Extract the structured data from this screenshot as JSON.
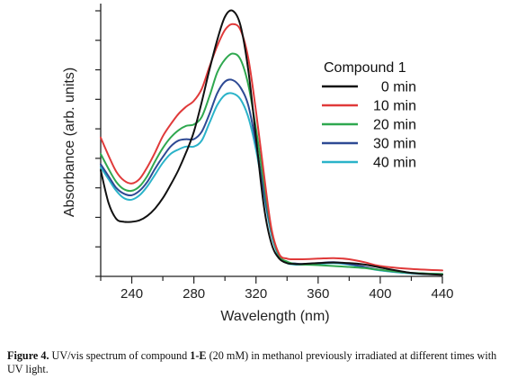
{
  "chart_data": {
    "type": "line",
    "xlabel": "Wavelength (nm)",
    "ylabel": "Absorbance (arb. units)",
    "xlim": [
      220,
      440
    ],
    "ylim": [
      0,
      9
    ],
    "xticks": [
      240,
      280,
      320,
      360,
      400,
      440
    ],
    "yticks": [
      0,
      1,
      2,
      3,
      4,
      5,
      6,
      7,
      8,
      9
    ],
    "y_tick_labels_shown": false,
    "grid": false,
    "legend": {
      "title": "Compound 1",
      "placement": "top-right"
    },
    "series": [
      {
        "name": "0 min",
        "color": "#111111",
        "x": [
          220,
          225,
          230,
          235,
          240,
          245,
          250,
          255,
          260,
          265,
          270,
          275,
          280,
          285,
          290,
          295,
          300,
          305,
          310,
          315,
          320,
          325,
          330,
          335,
          340,
          345,
          350,
          360,
          370,
          380,
          390,
          400,
          420,
          440
        ],
        "y": [
          3.6,
          2.5,
          1.95,
          1.85,
          1.85,
          1.9,
          2.05,
          2.3,
          2.65,
          3.1,
          3.6,
          4.2,
          4.9,
          5.9,
          7.0,
          8.0,
          8.8,
          9.0,
          8.5,
          7.0,
          4.7,
          2.4,
          1.1,
          0.6,
          0.45,
          0.42,
          0.42,
          0.45,
          0.47,
          0.45,
          0.4,
          0.3,
          0.12,
          0.05
        ]
      },
      {
        "name": "10 min",
        "color": "#e03a3a",
        "x": [
          220,
          225,
          230,
          235,
          240,
          245,
          250,
          255,
          260,
          265,
          270,
          275,
          280,
          285,
          290,
          295,
          300,
          305,
          310,
          315,
          320,
          325,
          330,
          335,
          340,
          345,
          350,
          360,
          370,
          380,
          390,
          400,
          420,
          440
        ],
        "y": [
          4.7,
          4.1,
          3.55,
          3.25,
          3.15,
          3.3,
          3.7,
          4.2,
          4.75,
          5.15,
          5.5,
          5.75,
          5.95,
          6.35,
          7.1,
          7.8,
          8.35,
          8.55,
          8.35,
          7.4,
          5.6,
          3.5,
          1.6,
          0.75,
          0.6,
          0.58,
          0.58,
          0.6,
          0.62,
          0.58,
          0.48,
          0.35,
          0.25,
          0.2
        ]
      },
      {
        "name": "20 min",
        "color": "#2fa84f",
        "x": [
          220,
          225,
          230,
          235,
          240,
          245,
          250,
          255,
          260,
          265,
          270,
          275,
          280,
          285,
          290,
          295,
          300,
          305,
          310,
          315,
          320,
          325,
          330,
          335,
          340,
          345,
          350,
          360,
          370,
          380,
          390,
          400,
          420,
          440
        ],
        "y": [
          4.15,
          3.65,
          3.2,
          2.95,
          2.9,
          3.05,
          3.4,
          3.9,
          4.35,
          4.7,
          4.95,
          5.1,
          5.15,
          5.4,
          6.1,
          6.9,
          7.35,
          7.55,
          7.35,
          6.5,
          5.0,
          3.2,
          1.55,
          0.7,
          0.5,
          0.42,
          0.4,
          0.38,
          0.35,
          0.32,
          0.28,
          0.22,
          0.12,
          0.08
        ]
      },
      {
        "name": "30 min",
        "color": "#2e4a94",
        "x": [
          220,
          225,
          230,
          235,
          240,
          245,
          250,
          255,
          260,
          265,
          270,
          275,
          280,
          285,
          290,
          295,
          300,
          305,
          310,
          315,
          320,
          325,
          330,
          335,
          340,
          345,
          350,
          360,
          370,
          380,
          390,
          400,
          420,
          440
        ],
        "y": [
          3.8,
          3.4,
          3.0,
          2.8,
          2.75,
          2.9,
          3.2,
          3.65,
          4.05,
          4.4,
          4.6,
          4.65,
          4.65,
          4.9,
          5.5,
          6.2,
          6.6,
          6.65,
          6.4,
          5.8,
          4.5,
          2.9,
          1.5,
          0.7,
          0.48,
          0.44,
          0.42,
          0.45,
          0.48,
          0.42,
          0.32,
          0.22,
          0.12,
          0.08
        ]
      },
      {
        "name": "40 min",
        "color": "#2bb3c9",
        "x": [
          220,
          225,
          230,
          235,
          240,
          245,
          250,
          255,
          260,
          265,
          270,
          275,
          280,
          285,
          290,
          295,
          300,
          305,
          310,
          315,
          320,
          325,
          330,
          335,
          340,
          345,
          350,
          360,
          370,
          380,
          390,
          400,
          420,
          440
        ],
        "y": [
          3.7,
          3.3,
          2.9,
          2.65,
          2.6,
          2.75,
          3.05,
          3.45,
          3.85,
          4.15,
          4.3,
          4.4,
          4.4,
          4.6,
          5.2,
          5.8,
          6.15,
          6.2,
          6.0,
          5.4,
          4.3,
          2.8,
          1.4,
          0.65,
          0.45,
          0.4,
          0.4,
          0.42,
          0.45,
          0.4,
          0.3,
          0.2,
          0.1,
          0.06
        ]
      }
    ]
  },
  "caption": {
    "label": "Figure 4.",
    "text_before": " UV/vis spectrum of compound ",
    "compound": "1-E",
    "text_after": " (20 mM) in methanol previously irradiated at different times with UV light."
  }
}
